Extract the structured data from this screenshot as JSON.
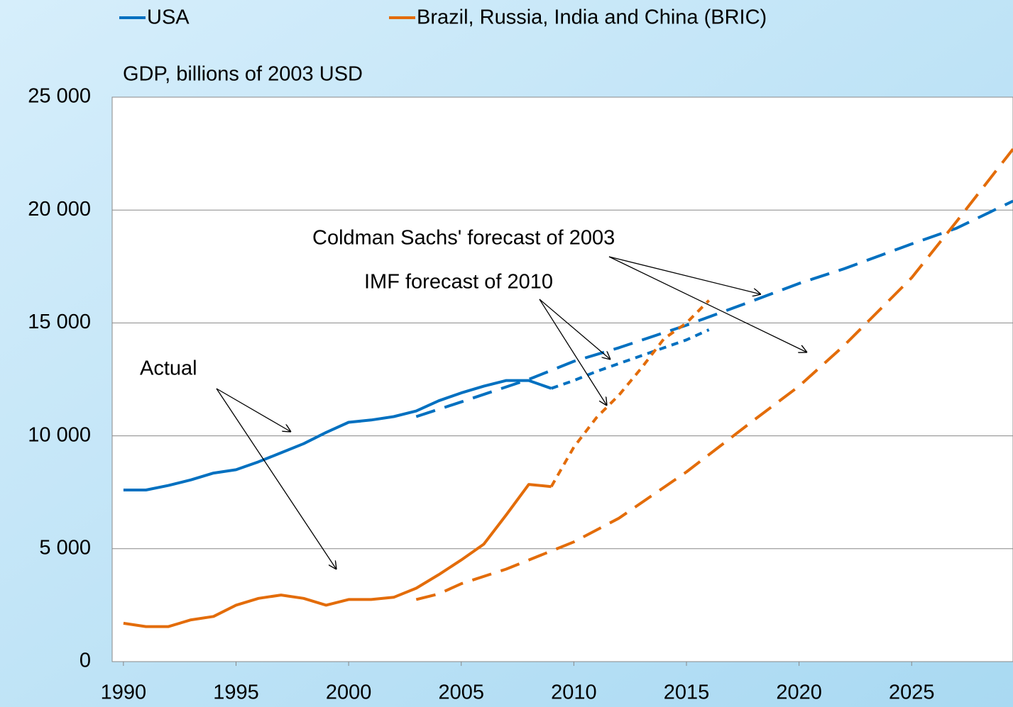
{
  "chart_data": {
    "type": "line",
    "y_label": "GDP, billions of 2003 USD",
    "xlim": [
      1989.5,
      2029.5
    ],
    "xticks": [
      1990,
      1995,
      2000,
      2005,
      2010,
      2015,
      2020,
      2025
    ],
    "ylim": [
      0,
      25000
    ],
    "yticks": [
      0,
      {
        "value": 5000,
        "label": "5 000"
      },
      {
        "value": 10000,
        "label": "10 000"
      },
      {
        "value": 15000,
        "label": "15 000"
      },
      {
        "value": 20000,
        "label": "20 000"
      },
      {
        "value": 25000,
        "label": "25 000"
      }
    ],
    "grid": true,
    "legend": "top",
    "series": [
      {
        "name": "USA",
        "color": "#0070c0",
        "lines": [
          {
            "style": "solid",
            "x": [
              1990,
              1991,
              1992,
              1993,
              1994,
              1995,
              1996,
              1997,
              1998,
              1999,
              2000,
              2001,
              2002,
              2003,
              2004,
              2005,
              2006,
              2007,
              2008,
              2009
            ],
            "values": [
              7600,
              7600,
              7800,
              8050,
              8350,
              8500,
              8850,
              9250,
              9650,
              10150,
              10600,
              10700,
              10850,
              11100,
              11550,
              11900,
              12200,
              12450,
              12450,
              12100
            ]
          },
          {
            "style": "dotted",
            "x": [
              2009,
              2010,
              2011,
              2012,
              2013,
              2014,
              2015,
              2016
            ],
            "values": [
              12100,
              12450,
              12850,
              13200,
              13550,
              13900,
              14250,
              14700
            ]
          },
          {
            "style": "dashed",
            "x": [
              2003,
              2005,
              2008,
              2010,
              2012,
              2015,
              2018,
              2020,
              2022,
              2025,
              2027,
              2029.5
            ],
            "values": [
              10850,
              11500,
              12500,
              13300,
              13900,
              14900,
              16000,
              16750,
              17400,
              18500,
              19200,
              20400
            ]
          }
        ]
      },
      {
        "name": "Brazil, Russia, India and China (BRIC)",
        "color": "#e36c09",
        "lines": [
          {
            "style": "solid",
            "x": [
              1990,
              1991,
              1992,
              1993,
              1994,
              1995,
              1996,
              1997,
              1998,
              1999,
              2000,
              2001,
              2002,
              2003,
              2004,
              2005,
              2006,
              2007,
              2008,
              2009
            ],
            "values": [
              1700,
              1550,
              1550,
              1850,
              2000,
              2500,
              2800,
              2950,
              2800,
              2500,
              2750,
              2750,
              2850,
              3250,
              3850,
              4500,
              5200,
              6500,
              7850,
              7750
            ]
          },
          {
            "style": "dotted",
            "x": [
              2009,
              2010,
              2011,
              2012,
              2013,
              2014,
              2015,
              2016
            ],
            "values": [
              7750,
              9500,
              10800,
              11800,
              13000,
              14300,
              15000,
              16000
            ]
          },
          {
            "style": "dashed",
            "x": [
              2003,
              2004,
              2005,
              2007,
              2010,
              2012,
              2015,
              2018,
              2020,
              2022,
              2025,
              2027,
              2029.5
            ],
            "values": [
              2750,
              3000,
              3450,
              4100,
              5300,
              6350,
              8400,
              10700,
              12200,
              14000,
              17000,
              19500,
              22700
            ]
          }
        ]
      }
    ],
    "annotations": [
      "Actual",
      "Coldman Sachs' forecast of 2003",
      "IMF forecast of 2010"
    ]
  }
}
